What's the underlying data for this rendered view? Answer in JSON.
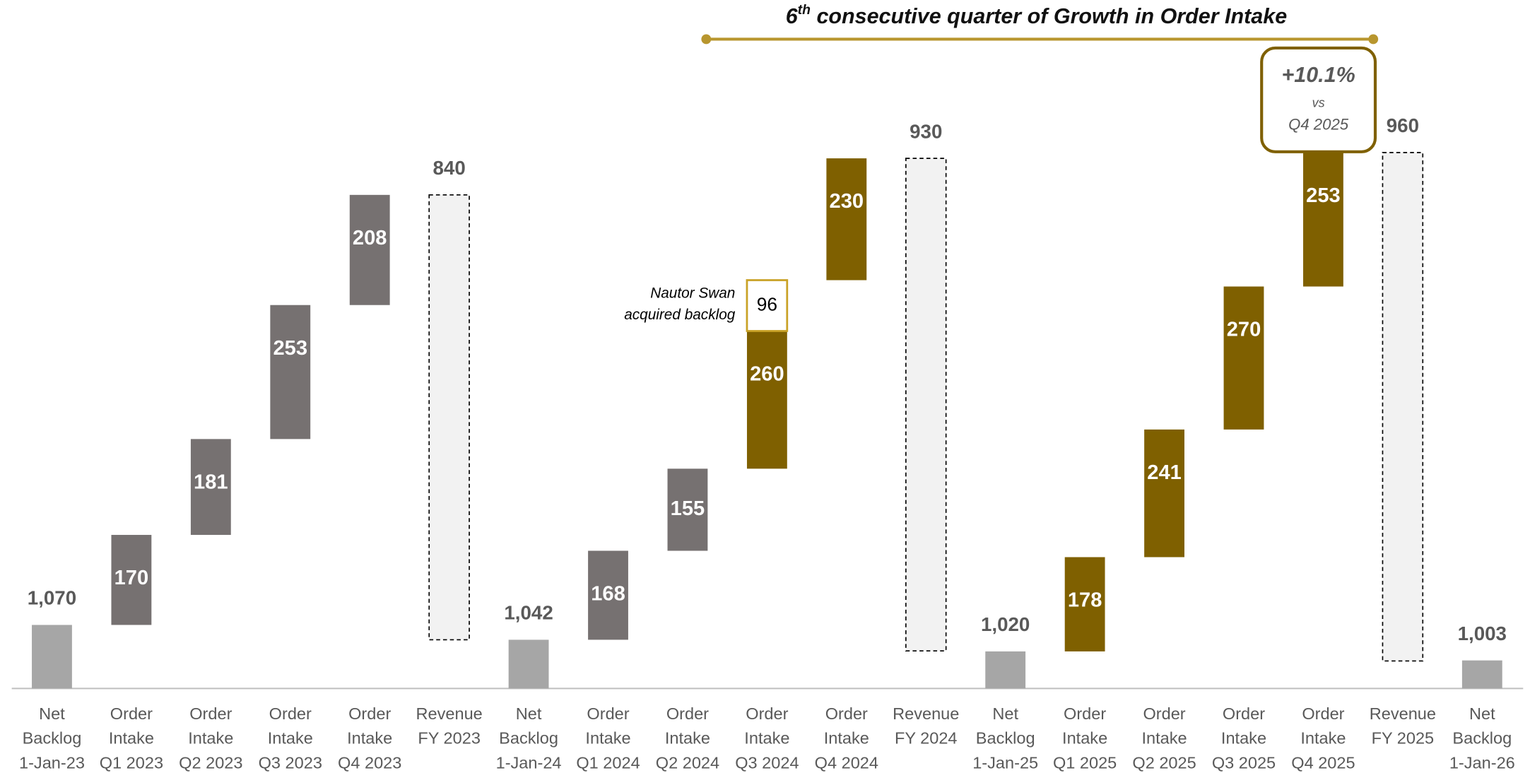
{
  "chart_data": {
    "type": "waterfall",
    "title": {
      "number": "6",
      "sup": "th",
      "text": " consecutive quarter of Growth in Order Intake"
    },
    "callout": [
      "+10.1%",
      "vs",
      "Q4 2025"
    ],
    "categories": [
      [
        "Net",
        "Backlog",
        "1-Jan-23"
      ],
      [
        "Order",
        "Intake",
        "Q1 2023"
      ],
      [
        "Order",
        "Intake",
        "Q2 2023"
      ],
      [
        "Order",
        "Intake",
        "Q3 2023"
      ],
      [
        "Order",
        "Intake",
        "Q4 2023"
      ],
      [
        "Revenue",
        "FY 2023"
      ],
      [
        "Net",
        "Backlog",
        "1-Jan-24"
      ],
      [
        "Order",
        "Intake",
        "Q1 2024"
      ],
      [
        "Order",
        "Intake",
        "Q2 2024"
      ],
      [
        "Order",
        "Intake",
        "Q3 2024"
      ],
      [
        "Order",
        "Intake",
        "Q4 2024"
      ],
      [
        "Revenue",
        "FY 2024"
      ],
      [
        "Net",
        "Backlog",
        "1-Jan-25"
      ],
      [
        "Order",
        "Intake",
        "Q1 2025"
      ],
      [
        "Order",
        "Intake",
        "Q2 2025"
      ],
      [
        "Order",
        "Intake",
        "Q3 2025"
      ],
      [
        "Order",
        "Intake",
        "Q4 2025"
      ],
      [
        "Revenue",
        "FY 2025"
      ],
      [
        "Net",
        "Backlog",
        "1-Jan-26"
      ]
    ],
    "values": [
      1070,
      170,
      181,
      253,
      208,
      840,
      1042,
      168,
      155,
      260,
      230,
      930,
      1020,
      178,
      241,
      270,
      253,
      960,
      1003
    ],
    "value_labels": [
      "1,070",
      "170",
      "181",
      "253",
      "208",
      "840",
      "1,042",
      "168",
      "155",
      "260",
      "230",
      "930",
      "1,020",
      "178",
      "241",
      "270",
      "253",
      "960",
      "1,003"
    ],
    "bar_kinds": [
      "total",
      "increase",
      "increase",
      "increase",
      "increase",
      "decrease",
      "total",
      "increase",
      "increase",
      "increase",
      "increase",
      "decrease",
      "total",
      "increase",
      "increase",
      "increase",
      "increase",
      "decrease",
      "total"
    ],
    "colors": [
      "#a6a6a6",
      "#767171",
      "#767171",
      "#767171",
      "#767171",
      "#f2f2f2",
      "#a6a6a6",
      "#767171",
      "#767171",
      "#7f6000",
      "#7f6000",
      "#f2f2f2",
      "#a6a6a6",
      "#7f6000",
      "#7f6000",
      "#7f6000",
      "#7f6000",
      "#f2f2f2",
      "#a6a6a6"
    ],
    "acquired_backlog": {
      "label": [
        "Nautor Swan",
        "acquired backlog"
      ],
      "color": "#c9a227",
      "values": [
        null,
        null,
        null,
        null,
        null,
        null,
        null,
        null,
        null,
        96,
        null,
        null,
        null,
        null,
        null,
        null,
        null,
        null,
        null
      ]
    },
    "ylim": [
      950,
      2250
    ]
  }
}
